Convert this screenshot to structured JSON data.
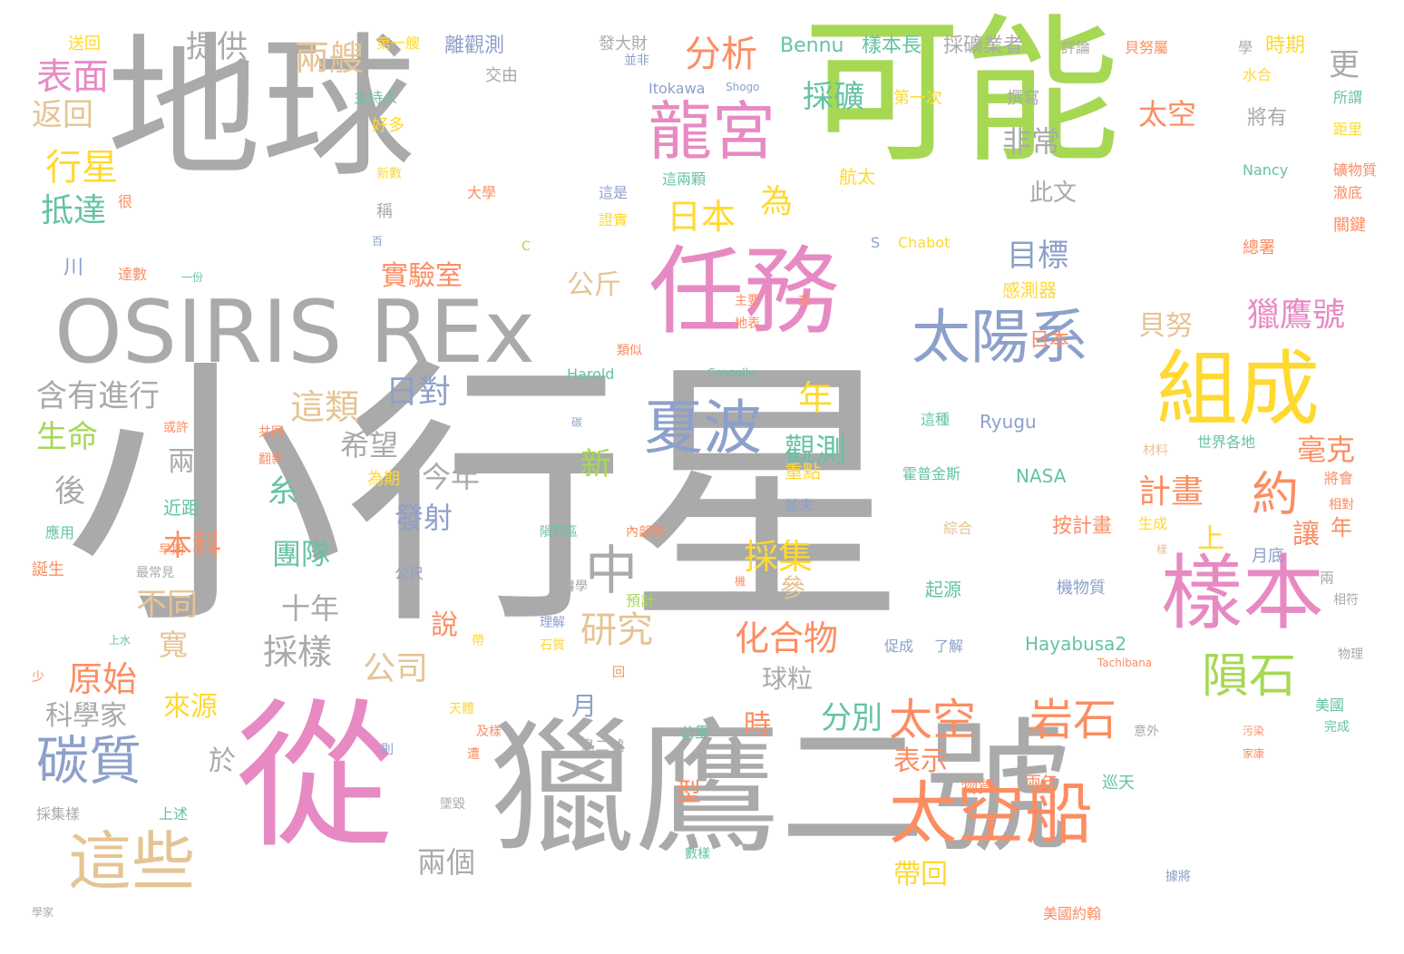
{
  "palette": {
    "gray": "#aaaaaa",
    "green": "#a6d854",
    "pink": "#e78ac3",
    "yellow": "#ffd92f",
    "orange": "#fc8d62",
    "blue": "#8da0cb",
    "tan": "#e5c494",
    "teal": "#66c2a5"
  },
  "words": [
    "小行星",
    "地球",
    "可能",
    "從",
    "獵鷹二號",
    "OSIRIS REx",
    "任務",
    "組成",
    "樣本",
    "太空船",
    "龍宮",
    "太陽系",
    "夏波",
    "這些",
    "碳質",
    "隕石",
    "太空",
    "岩石",
    "中",
    "約",
    "表面",
    "分析",
    "日本",
    "行星",
    "抵達",
    "返回",
    "兩艘",
    "提供",
    "採礦",
    "獵鷹號",
    "目標",
    "非常",
    "為",
    "日對",
    "這類",
    "含有進行",
    "生命",
    "採集",
    "化合物",
    "研究",
    "原始",
    "採樣",
    "公司",
    "觀測",
    "計畫",
    "毫克",
    "希望",
    "今年",
    "發射",
    "後",
    "本科",
    "團隊",
    "十年",
    "不同",
    "說",
    "科學家",
    "來源",
    "於",
    "分別",
    "表示",
    "帶回",
    "兩個",
    "球粒",
    "讓",
    "上",
    "年",
    "新",
    "月",
    "型",
    "時",
    "寬",
    "糸",
    "參",
    "公斤",
    "貝努",
    "實驗室",
    "感測器",
    "日本",
    "太空",
    "此文",
    "Bennu",
    "樣本長",
    "採礦業者",
    "發大財",
    "離觀測",
    "第一艘",
    "送回",
    "交由",
    "主持人",
    "好多",
    "新數",
    "稱",
    "大學",
    "這是",
    "證實",
    "這兩顆",
    "航太",
    "第一次",
    "撰寫",
    "將有",
    "水合",
    "時期",
    "所謂",
    "距里",
    "礦物質",
    "澈底",
    "關鍵",
    "總署",
    "Itokawa",
    "Shogo",
    "Nancy",
    "Chabot",
    "S",
    "C",
    "Harold",
    "Connolly",
    "Ryugu",
    "這種",
    "NASA",
    "霍普金斯",
    "Hayabusa2",
    "世界各地",
    "材料",
    "將會",
    "相對",
    "生成",
    "按計畫",
    "月底",
    "起源",
    "機物質",
    "促成",
    "了解",
    "物理",
    "美國",
    "完成",
    "兩年",
    "巡天",
    "物質",
    "美國約翰",
    "據將",
    "意外",
    "污染",
    "家康",
    "天體",
    "隕石區",
    "內部則",
    "預計",
    "理解",
    "石質",
    "公里",
    "鳥二號",
    "回",
    "及樣",
    "遭",
    "則",
    "墜毀",
    "採集樣",
    "上述",
    "數樣",
    "學家",
    "少",
    "誕生",
    "應用",
    "最常見",
    "早期",
    "近距",
    "共同",
    "翻新",
    "或許",
    "為期",
    "一份",
    "達數",
    "主要",
    "地表",
    "來",
    "類似",
    "重點",
    "並未",
    "碳",
    "機",
    "上水",
    "帶",
    "公尺",
    "會",
    "綜合",
    "樣",
    "很",
    "百",
    "川",
    "兩",
    "更",
    "年",
    "學",
    "評論",
    "貝努屬",
    "並非",
    "兩",
    "Tachibana",
    "相符",
    "科學"
  ]
}
